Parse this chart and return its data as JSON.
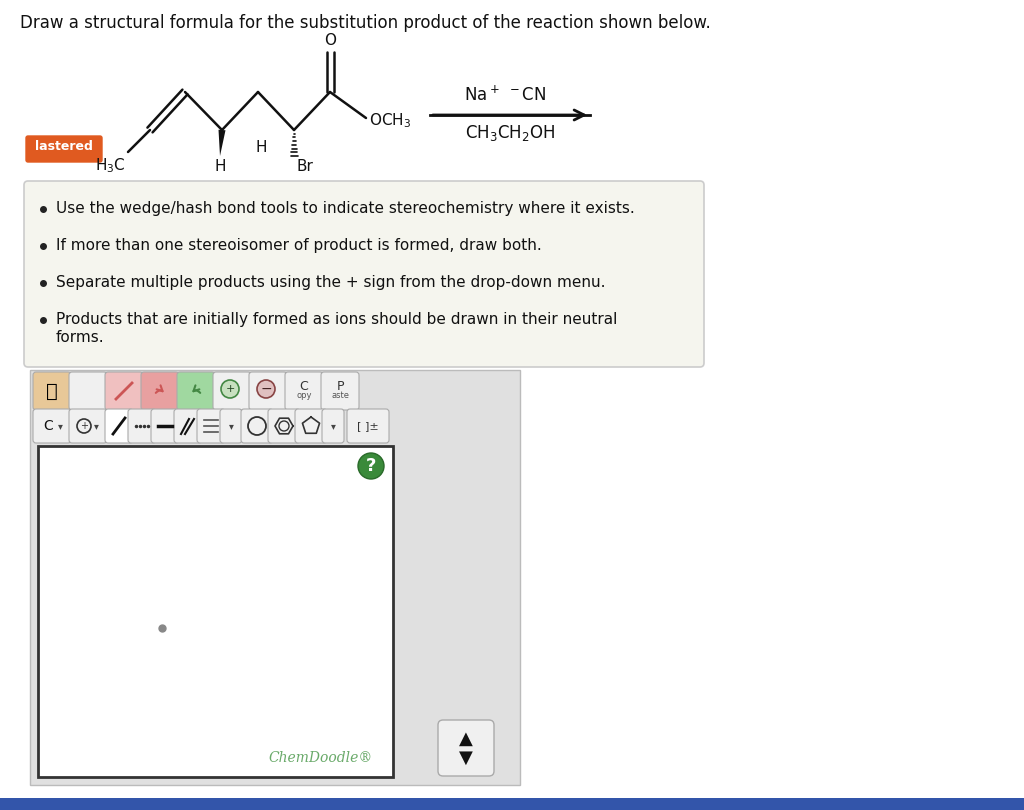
{
  "title": "Draw a structural formula for the substitution product of the reaction shown below.",
  "title_fontsize": 12,
  "bg_color": "#ffffff",
  "page_bg": "#f0f0f0",
  "bullet_points": [
    "Use the wedge/hash bond tools to indicate stereochemistry where it exists.",
    "If more than one stereoisomer of product is formed, draw both.",
    "Separate multiple products using the + sign from the drop-down menu.",
    "Products that are initially formed as ions should be drawn in their neutral\nforms."
  ],
  "bullet_box_color": "#f5f5ee",
  "bullet_box_border": "#cccccc",
  "mastered_color": "#e05a20",
  "chemdoodle_text": "ChemDoodle®",
  "chemdoodle_color": "#6aaa6a",
  "toolbar_bg": "#e0e0e0",
  "toolbar_border": "#bbbbbb",
  "canvas_bg": "#ffffff",
  "canvas_border": "#333333",
  "scroll_btn_bg": "#f0f0f0",
  "scroll_btn_border": "#aaaaaa",
  "bottom_bar_color": "#3355aa"
}
